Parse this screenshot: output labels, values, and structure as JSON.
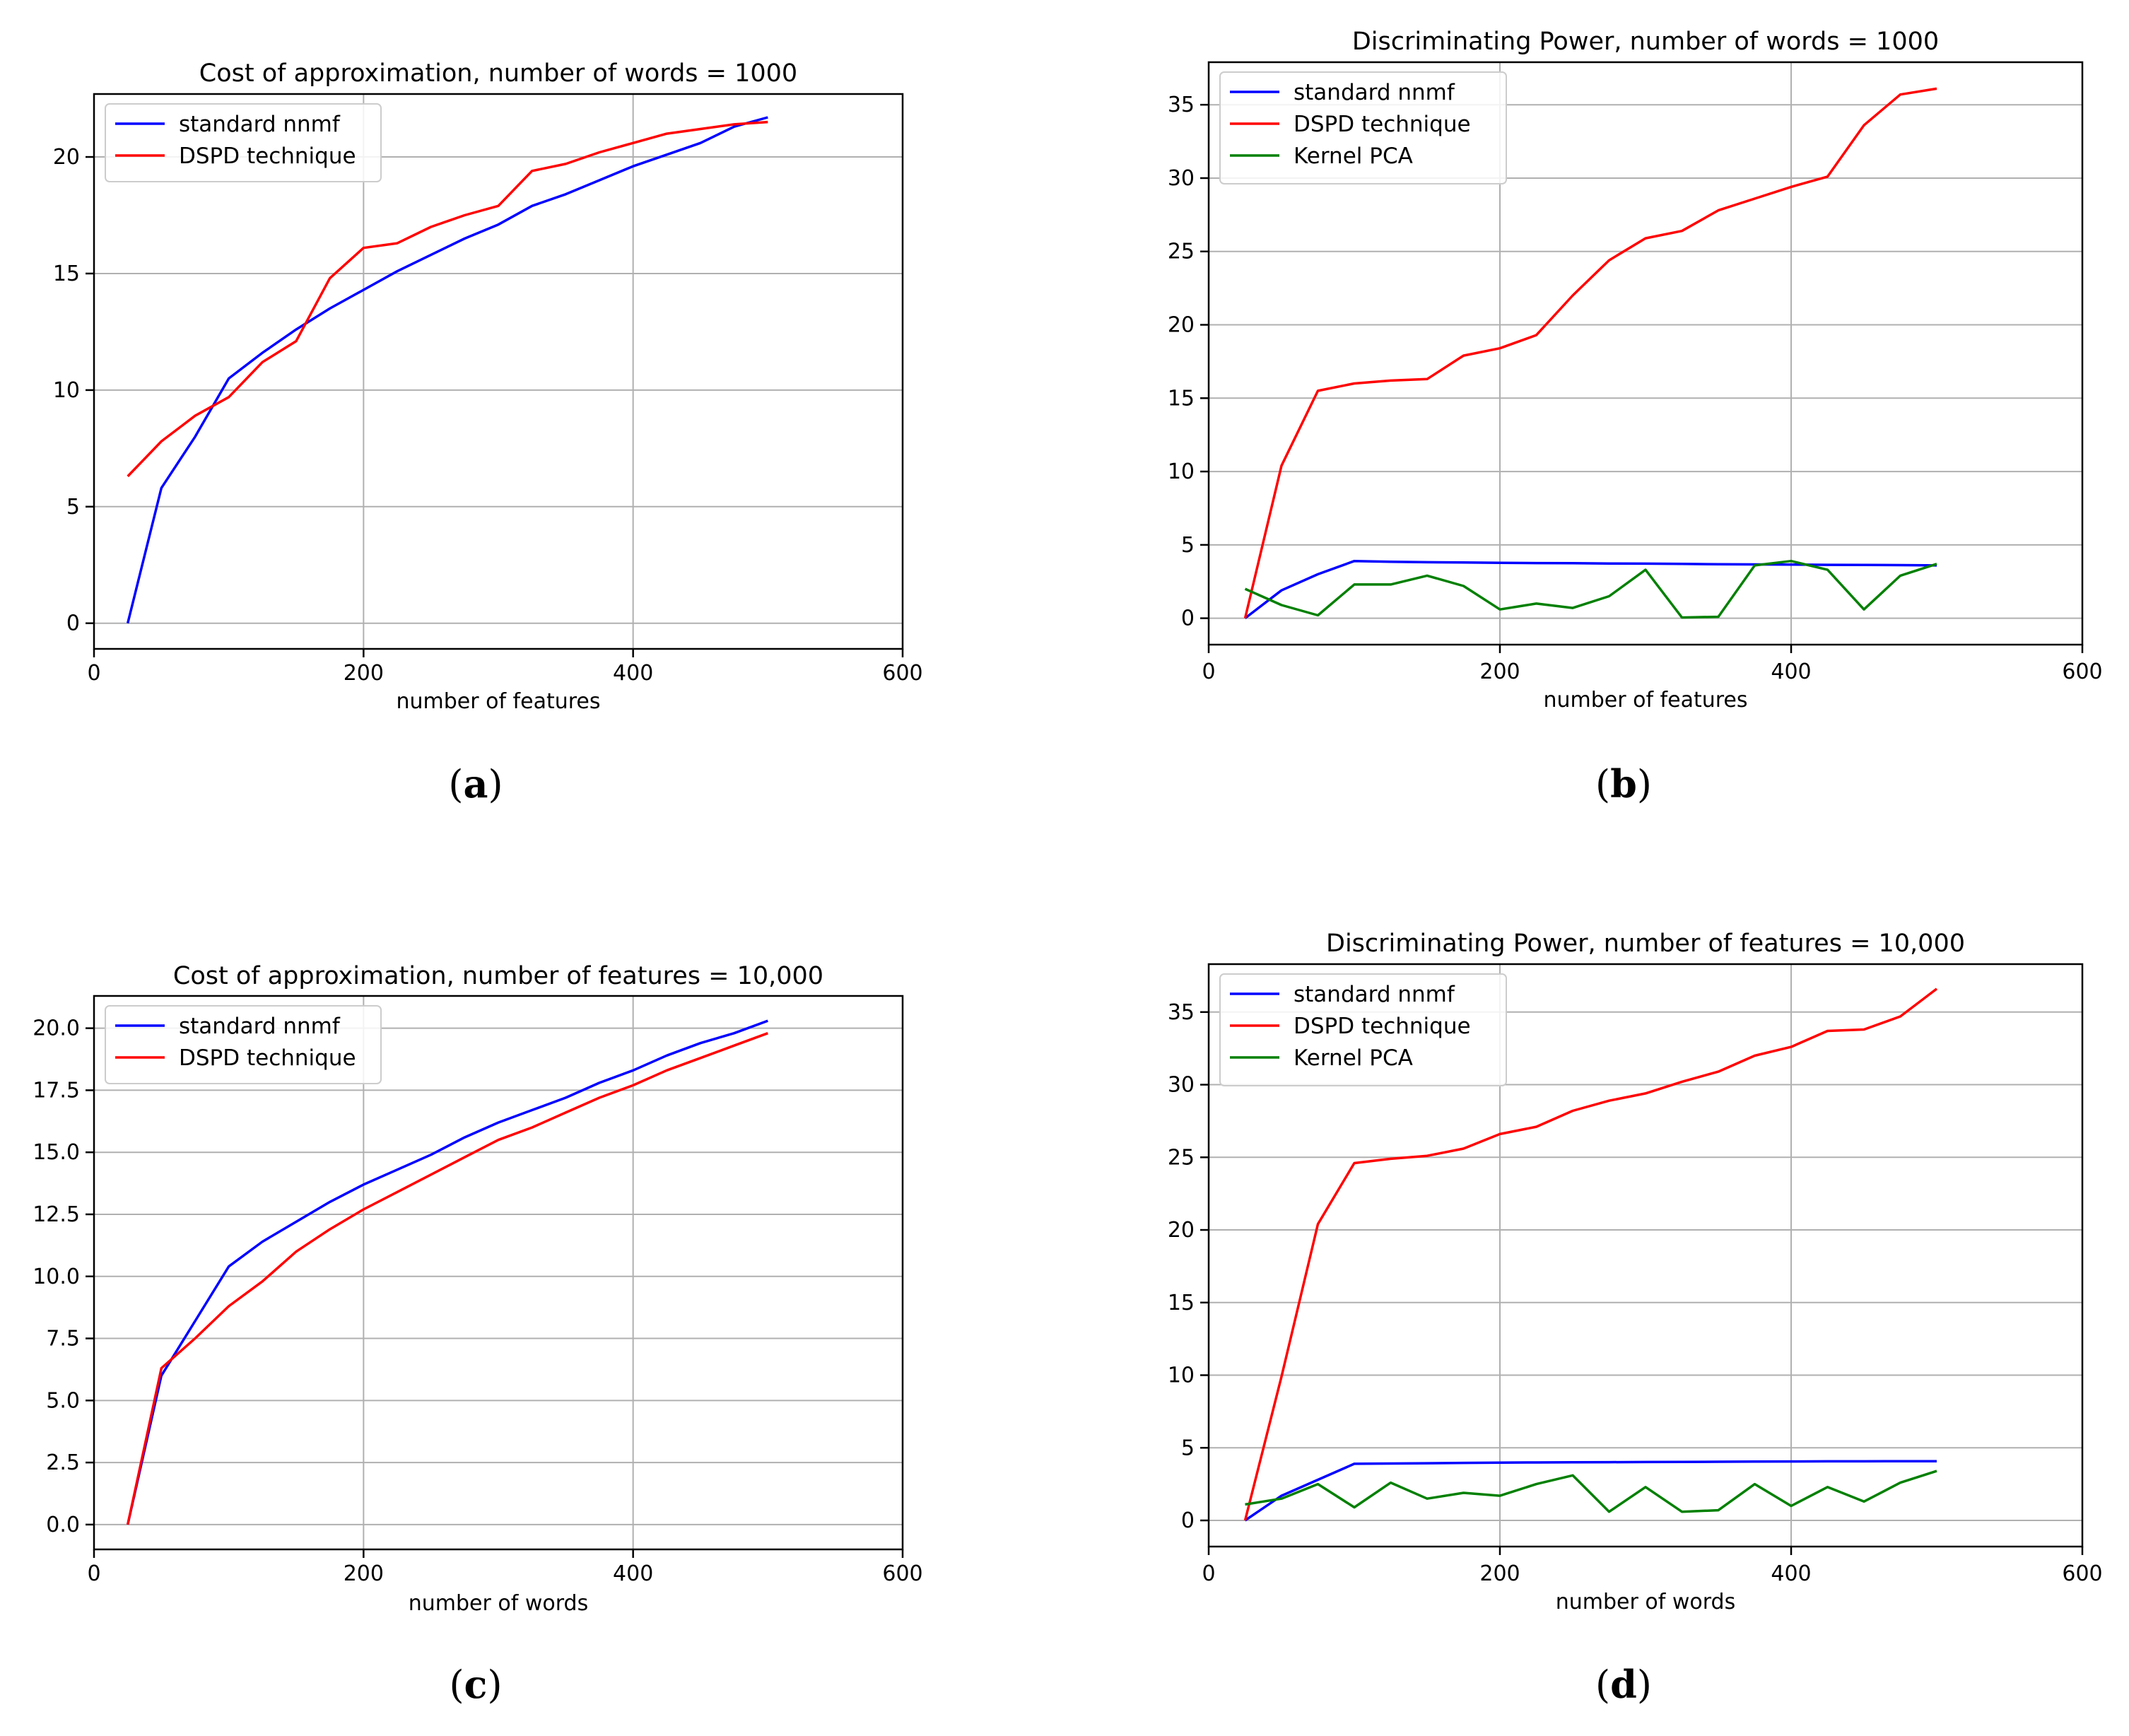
{
  "chart_data": [
    {
      "id": "a",
      "type": "line",
      "panel_label": "(a)",
      "panel_label_parts": [
        "(",
        "a",
        ")"
      ],
      "title": "Cost of approximation, number of words = 1000",
      "xlabel": "number of features",
      "ylabel": "",
      "xlim": [
        0,
        600
      ],
      "ylim": [
        -1.1,
        22.7
      ],
      "xticks": [
        0,
        200,
        400,
        600
      ],
      "xtick_labels": [
        "0",
        "200",
        "400",
        "600"
      ],
      "yticks": [
        0,
        5,
        10,
        15,
        20
      ],
      "ytick_labels": [
        "0",
        "5",
        "10",
        "15",
        "20"
      ],
      "grid": true,
      "legend": "top-left",
      "x": [
        25,
        50,
        75,
        100,
        125,
        150,
        175,
        200,
        225,
        250,
        275,
        300,
        325,
        350,
        375,
        400,
        425,
        450,
        475,
        500
      ],
      "series": [
        {
          "name": "standard nnmf",
          "color": "#0000ff",
          "values": [
            0.0,
            5.8,
            8.0,
            10.5,
            11.6,
            12.6,
            13.5,
            14.3,
            15.1,
            15.8,
            16.5,
            17.1,
            17.9,
            18.4,
            19.0,
            19.6,
            20.1,
            20.6,
            21.3,
            21.7
          ]
        },
        {
          "name": "DSPD technique",
          "color": "#ff0000",
          "values": [
            6.3,
            7.8,
            8.9,
            9.7,
            11.2,
            12.1,
            14.8,
            16.1,
            16.3,
            17.0,
            17.5,
            17.9,
            19.4,
            19.7,
            20.2,
            20.6,
            21.0,
            21.2,
            21.4,
            21.5
          ]
        }
      ]
    },
    {
      "id": "b",
      "type": "line",
      "panel_label": "(b)",
      "panel_label_parts": [
        "(",
        "b",
        ")"
      ],
      "title": "Discriminating Power, number of words = 1000",
      "xlabel": "number of features",
      "ylabel": "",
      "xlim": [
        0,
        600
      ],
      "ylim": [
        -1.8,
        37.9
      ],
      "xticks": [
        0,
        200,
        400,
        600
      ],
      "xtick_labels": [
        "0",
        "200",
        "400",
        "600"
      ],
      "yticks": [
        0,
        5,
        10,
        15,
        20,
        25,
        30,
        35
      ],
      "ytick_labels": [
        "0",
        "5",
        "10",
        "15",
        "20",
        "25",
        "30",
        "35"
      ],
      "grid": true,
      "legend": "top-left",
      "x": [
        25,
        50,
        75,
        100,
        125,
        150,
        175,
        200,
        225,
        250,
        275,
        300,
        325,
        350,
        375,
        400,
        425,
        450,
        475,
        500
      ],
      "series": [
        {
          "name": "standard nnmf",
          "color": "#0000ff",
          "values": [
            0.0,
            1.9,
            3.0,
            3.9,
            3.85,
            3.82,
            3.8,
            3.78,
            3.76,
            3.75,
            3.73,
            3.72,
            3.7,
            3.68,
            3.67,
            3.66,
            3.64,
            3.63,
            3.62,
            3.6
          ]
        },
        {
          "name": "DSPD technique",
          "color": "#ff0000",
          "values": [
            0.0,
            10.4,
            15.5,
            16.0,
            16.2,
            16.3,
            17.9,
            18.4,
            19.3,
            22.0,
            24.4,
            25.9,
            26.4,
            27.8,
            28.6,
            29.4,
            30.1,
            33.6,
            35.7,
            36.1
          ]
        },
        {
          "name": "Kernel PCA",
          "color": "#008000",
          "values": [
            2.0,
            0.9,
            0.2,
            2.3,
            2.3,
            2.9,
            2.2,
            0.6,
            1.0,
            0.7,
            1.5,
            3.3,
            0.05,
            0.1,
            3.6,
            3.9,
            3.3,
            0.6,
            2.9,
            3.7
          ]
        }
      ]
    },
    {
      "id": "c",
      "type": "line",
      "panel_label": "(c)",
      "panel_label_parts": [
        "(",
        "c",
        ")"
      ],
      "title": "Cost of approximation, number of features = 10,000",
      "xlabel": "number of words",
      "ylabel": "",
      "xlim": [
        0,
        600
      ],
      "ylim": [
        -1.0,
        21.3
      ],
      "xticks": [
        0,
        200,
        400,
        600
      ],
      "xtick_labels": [
        "0",
        "200",
        "400",
        "600"
      ],
      "yticks": [
        0,
        2.5,
        5,
        7.5,
        10,
        12.5,
        15,
        17.5,
        20
      ],
      "ytick_labels": [
        "0.0",
        "2.5",
        "5.0",
        "7.5",
        "10.0",
        "12.5",
        "15.0",
        "17.5",
        "20.0"
      ],
      "grid": true,
      "legend": "top-left",
      "x": [
        25,
        50,
        75,
        100,
        125,
        150,
        175,
        200,
        225,
        250,
        275,
        300,
        325,
        350,
        375,
        400,
        425,
        450,
        475,
        500
      ],
      "series": [
        {
          "name": "standard nnmf",
          "color": "#0000ff",
          "values": [
            0.0,
            6.0,
            8.2,
            10.4,
            11.4,
            12.2,
            13.0,
            13.7,
            14.3,
            14.9,
            15.6,
            16.2,
            16.7,
            17.2,
            17.8,
            18.3,
            18.9,
            19.4,
            19.8,
            20.3
          ]
        },
        {
          "name": "DSPD technique",
          "color": "#ff0000",
          "values": [
            0.0,
            6.3,
            7.5,
            8.8,
            9.8,
            11.0,
            11.9,
            12.7,
            13.4,
            14.1,
            14.8,
            15.5,
            16.0,
            16.6,
            17.2,
            17.7,
            18.3,
            18.8,
            19.3,
            19.8
          ]
        }
      ]
    },
    {
      "id": "d",
      "type": "line",
      "panel_label": "(d)",
      "panel_label_parts": [
        "(",
        "d",
        ")"
      ],
      "title": "Discriminating Power, number of features = 10,000",
      "xlabel": "number of words",
      "ylabel": "",
      "xlim": [
        0,
        600
      ],
      "ylim": [
        -1.8,
        38.3
      ],
      "xticks": [
        0,
        200,
        400,
        600
      ],
      "xtick_labels": [
        "0",
        "200",
        "400",
        "600"
      ],
      "yticks": [
        0,
        5,
        10,
        15,
        20,
        25,
        30,
        35
      ],
      "ytick_labels": [
        "0",
        "5",
        "10",
        "15",
        "20",
        "25",
        "30",
        "35"
      ],
      "grid": true,
      "legend": "top-left",
      "x": [
        25,
        50,
        75,
        100,
        125,
        150,
        175,
        200,
        225,
        250,
        275,
        300,
        325,
        350,
        375,
        400,
        425,
        450,
        475,
        500
      ],
      "series": [
        {
          "name": "standard nnmf",
          "color": "#0000ff",
          "values": [
            0.0,
            1.7,
            2.8,
            3.9,
            3.92,
            3.94,
            3.96,
            3.98,
            3.99,
            4.0,
            4.01,
            4.02,
            4.03,
            4.04,
            4.05,
            4.06,
            4.07,
            4.07,
            4.08,
            4.08
          ]
        },
        {
          "name": "DSPD technique",
          "color": "#ff0000",
          "values": [
            0.0,
            9.9,
            20.4,
            24.6,
            24.9,
            25.1,
            25.6,
            26.6,
            27.1,
            28.2,
            28.9,
            29.4,
            30.2,
            30.9,
            32.0,
            32.6,
            33.7,
            33.8,
            34.7,
            36.6
          ]
        },
        {
          "name": "Kernel PCA",
          "color": "#008000",
          "values": [
            1.1,
            1.5,
            2.5,
            0.9,
            2.6,
            1.5,
            1.9,
            1.7,
            2.5,
            3.1,
            0.6,
            2.3,
            0.6,
            0.7,
            2.5,
            1.0,
            2.3,
            1.3,
            2.6,
            3.4
          ]
        }
      ]
    }
  ]
}
